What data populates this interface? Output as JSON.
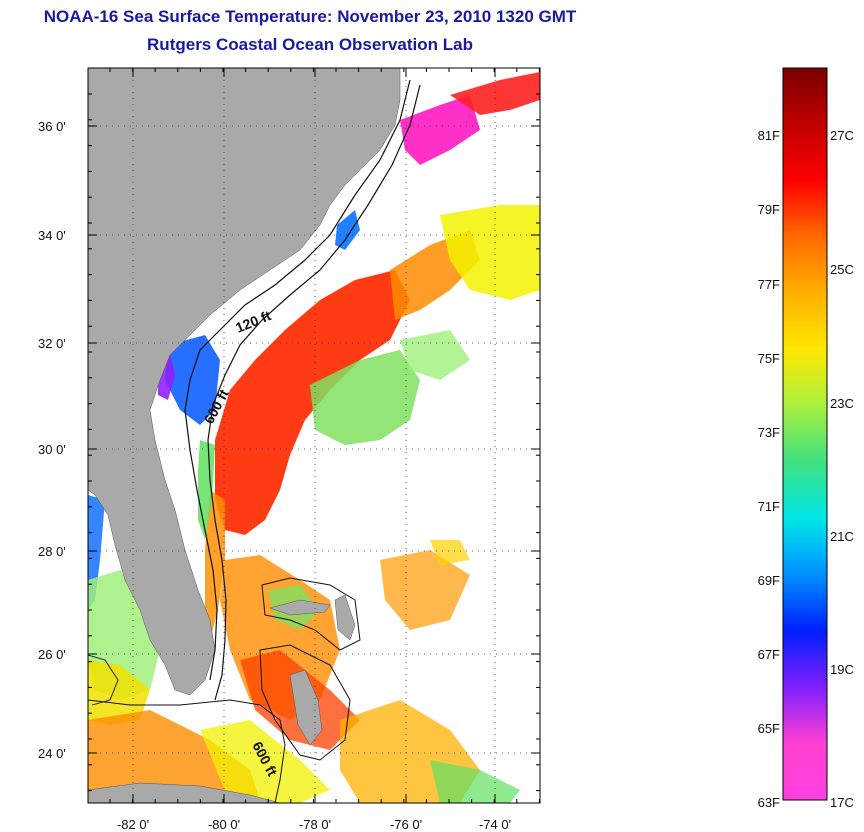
{
  "header": {
    "title": "NOAA-16 Sea Surface Temperature:  November 23, 2010 1320 GMT",
    "subtitle": "Rutgers Coastal Ocean Observation Lab"
  },
  "map": {
    "lon_labels": [
      "-82 0'",
      "-80 0'",
      "-78 0'",
      "-76 0'",
      "-74 0'"
    ],
    "lat_labels": [
      "36 0'",
      "34 0'",
      "32 0'",
      "30 0'",
      "28 0'",
      "26 0'",
      "24 0'"
    ],
    "contour_labels": [
      "120 ft",
      "600 ft",
      "600 ft"
    ],
    "colors": {
      "land": "#a9a9a9",
      "no_data": "#ffffff",
      "warm": "#ff2a00",
      "orange": "#ff8c00",
      "yellow": "#f2f200",
      "green": "#60e060",
      "blue": "#1060ff",
      "purple": "#9020ff",
      "magenta": "#ff30c8"
    }
  },
  "colorbar": {
    "fahrenheit_labels": [
      "81F",
      "79F",
      "77F",
      "75F",
      "73F",
      "71F",
      "69F",
      "67F",
      "65F",
      "63F"
    ],
    "celsius_labels": [
      "27C",
      "25C",
      "23C",
      "21C",
      "19C",
      "17C"
    ],
    "gradient_stops": [
      "#7a0000",
      "#c00000",
      "#ff0000",
      "#ff6a00",
      "#ffb000",
      "#ffe800",
      "#a8f040",
      "#40e080",
      "#00e8e8",
      "#0090ff",
      "#0020ff",
      "#8020ff",
      "#ff40d0",
      "#ff40e0"
    ]
  }
}
